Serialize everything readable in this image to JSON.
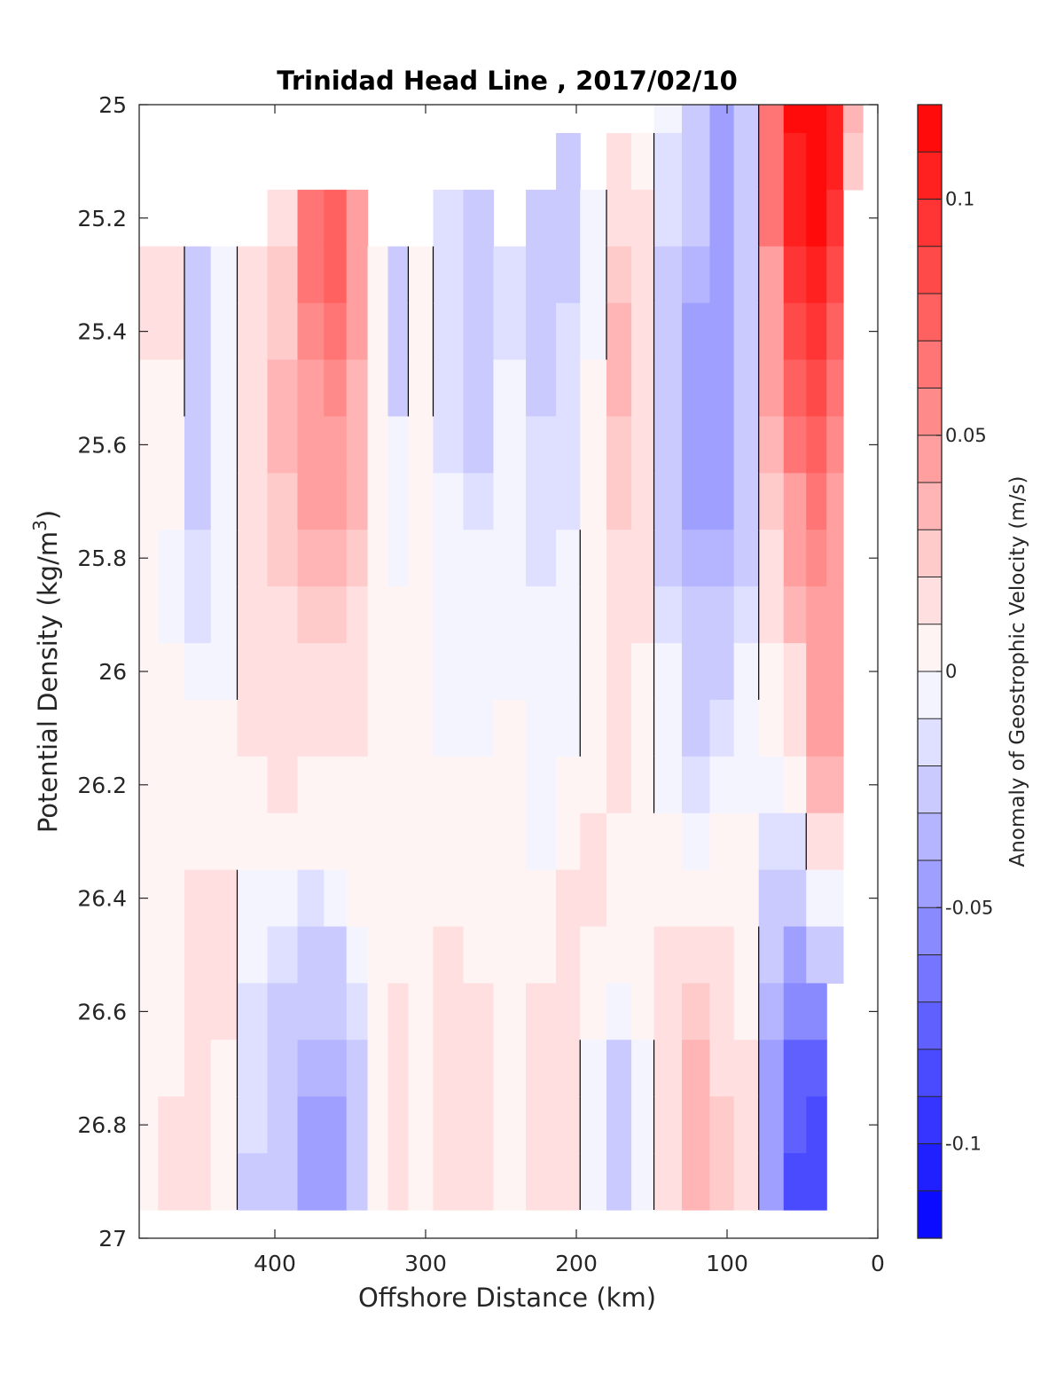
{
  "chart_data": {
    "type": "heatmap",
    "title": "Trinidad Head Line , 2017/02/10",
    "xlabel": "Offshore Distance (km)",
    "ylabel_main": "Potential Density (kg/m",
    "ylabel_sup": "3",
    "ylabel_end": ")",
    "colorbar_label": "Anomaly of Geostrophic Velocity (m/s)",
    "xlim": [
      490,
      0
    ],
    "x_reversed": true,
    "ylim": [
      25,
      27
    ],
    "y_reversed": true,
    "x_ticks": [
      400,
      300,
      200,
      100,
      0
    ],
    "x_tick_labels": [
      "400",
      "300",
      "200",
      "100",
      "0"
    ],
    "y_ticks": [
      25,
      25.2,
      25.4,
      25.6,
      25.8,
      26,
      26.2,
      26.4,
      26.6,
      26.8,
      27
    ],
    "y_tick_labels": [
      "25",
      "25.2",
      "25.4",
      "25.6",
      "25.8",
      "26",
      "26.2",
      "26.4",
      "26.6",
      "26.8",
      "27"
    ],
    "colorbar": {
      "clim": [
        -0.12,
        0.12
      ],
      "ticks": [
        0.1,
        0.05,
        0,
        -0.05,
        -0.1
      ],
      "tick_labels": [
        "0.1",
        "0.05",
        "0",
        "-0.05",
        "-0.1"
      ],
      "levels": 24,
      "colormap": "blue-white-red",
      "color_negative": "#0000ff",
      "color_zero": "#ffffff",
      "color_positive": "#ff0000"
    },
    "zero_contour": true,
    "columns": [
      {
        "x": 485,
        "v": [
          null,
          null,
          null,
          0.02,
          0.01,
          0.005,
          0,
          0,
          0,
          0,
          0,
          0.003,
          0.002,
          0.001,
          0.001,
          0.001,
          0.002,
          0.002,
          0.004,
          0.004,
          null
        ]
      },
      {
        "x": 470,
        "v": [
          null,
          null,
          null,
          0.015,
          0.01,
          0.003,
          0,
          0,
          -0.005,
          -0.01,
          0,
          0.002,
          0.002,
          0.001,
          0.002,
          0.003,
          0.005,
          0.005,
          0.01,
          0.01,
          null
        ]
      },
      {
        "x": 450,
        "v": [
          null,
          null,
          null,
          -0.03,
          -0.03,
          -0.028,
          -0.02,
          -0.02,
          -0.018,
          -0.015,
          -0.01,
          0,
          0,
          0.003,
          0.01,
          0.012,
          0.015,
          0.02,
          0.02,
          0.02,
          null
        ]
      },
      {
        "x": 435,
        "v": [
          null,
          null,
          null,
          -0.01,
          -0.01,
          -0.01,
          -0.01,
          -0.01,
          -0.01,
          -0.01,
          -0.008,
          0,
          0,
          0.002,
          0.01,
          0.012,
          0.01,
          0.005,
          0.005,
          0.005,
          null
        ]
      },
      {
        "x": 415,
        "v": [
          null,
          null,
          null,
          0.015,
          0.012,
          0.015,
          0.015,
          0.015,
          0.015,
          0.015,
          0.015,
          0.01,
          0.005,
          0,
          -0.005,
          -0.01,
          -0.015,
          -0.015,
          -0.018,
          -0.02,
          null
        ]
      },
      {
        "x": 395,
        "v": [
          null,
          null,
          0.02,
          0.025,
          0.025,
          0.03,
          0.03,
          0.025,
          0.025,
          0.02,
          0.02,
          0.015,
          0.01,
          0,
          -0.01,
          -0.015,
          -0.02,
          -0.025,
          -0.03,
          -0.03,
          null
        ]
      },
      {
        "x": 375,
        "v": [
          null,
          null,
          0.06,
          0.06,
          0.055,
          0.05,
          0.045,
          0.04,
          0.035,
          0.025,
          0.02,
          0.012,
          0.005,
          0,
          -0.015,
          -0.02,
          -0.03,
          -0.035,
          -0.04,
          -0.045,
          null
        ]
      },
      {
        "x": 360,
        "v": [
          null,
          null,
          0.07,
          0.07,
          0.06,
          0.055,
          0.05,
          0.04,
          0.035,
          0.025,
          0.02,
          0.01,
          0.003,
          0,
          -0.01,
          -0.02,
          -0.03,
          -0.035,
          -0.04,
          -0.04,
          null
        ]
      },
      {
        "x": 345,
        "v": [
          null,
          null,
          0.05,
          0.045,
          0.04,
          0.035,
          0.035,
          0.03,
          0.025,
          0.02,
          0.015,
          0.01,
          0.005,
          0,
          0,
          -0.005,
          -0.015,
          -0.02,
          -0.025,
          -0.025,
          null
        ]
      },
      {
        "x": 332,
        "v": [
          null,
          null,
          null,
          0,
          0,
          0,
          0,
          0,
          0,
          0,
          0,
          0,
          0,
          0,
          0,
          0,
          0,
          0,
          0,
          0,
          null
        ]
      },
      {
        "x": 318,
        "v": [
          null,
          null,
          null,
          -0.02,
          -0.025,
          -0.02,
          -0.01,
          -0.005,
          -0.003,
          0,
          0,
          0,
          0,
          0,
          0,
          0,
          0.01,
          0.015,
          0.015,
          0.01,
          null
        ]
      },
      {
        "x": 305,
        "v": [
          null,
          null,
          null,
          0.003,
          0.003,
          0.001,
          0,
          0,
          0,
          0,
          0,
          0,
          0,
          0,
          0,
          0,
          0,
          0,
          0,
          0,
          null
        ]
      },
      {
        "x": 285,
        "v": [
          null,
          null,
          -0.015,
          -0.015,
          -0.015,
          -0.015,
          -0.015,
          -0.01,
          -0.01,
          -0.01,
          -0.008,
          -0.005,
          0,
          0,
          0.005,
          0.01,
          0.015,
          0.015,
          0.015,
          0.015,
          null
        ]
      },
      {
        "x": 265,
        "v": [
          null,
          null,
          -0.03,
          -0.03,
          -0.03,
          -0.025,
          -0.02,
          -0.015,
          -0.01,
          -0.008,
          -0.005,
          -0.002,
          0,
          0,
          0.002,
          0.005,
          0.01,
          0.015,
          0.015,
          0.015,
          null
        ]
      },
      {
        "x": 245,
        "v": [
          null,
          null,
          null,
          -0.012,
          -0.012,
          -0.01,
          -0.01,
          -0.008,
          -0.005,
          -0.005,
          -0.003,
          0,
          0,
          0,
          0,
          0,
          0,
          0,
          0,
          0,
          null
        ]
      },
      {
        "x": 222,
        "v": [
          null,
          null,
          -0.02,
          -0.02,
          -0.02,
          -0.02,
          -0.018,
          -0.015,
          -0.012,
          -0.01,
          -0.008,
          -0.006,
          -0.005,
          -0.003,
          0,
          0.003,
          0.01,
          0.015,
          0.02,
          0.02,
          null
        ]
      },
      {
        "x": 205,
        "v": [
          null,
          -0.02,
          -0.03,
          -0.02,
          -0.015,
          -0.015,
          -0.015,
          -0.012,
          -0.01,
          -0.008,
          -0.005,
          -0.003,
          0,
          0,
          0.01,
          0.015,
          0.02,
          0.02,
          0.02,
          0.02,
          null
        ]
      },
      {
        "x": 190,
        "v": [
          null,
          null,
          -0.005,
          -0.002,
          -0.002,
          0,
          0,
          0,
          0.003,
          0.005,
          0.005,
          0.005,
          0.008,
          0.01,
          0.01,
          0.005,
          0,
          -0.005,
          -0.01,
          -0.01,
          null
        ]
      },
      {
        "x": 170,
        "v": [
          null,
          0.01,
          0.02,
          0.025,
          0.03,
          0.03,
          0.025,
          0.025,
          0.02,
          0.02,
          0.015,
          0.01,
          0.01,
          0.008,
          0.005,
          0,
          -0.01,
          -0.02,
          -0.02,
          -0.02,
          null
        ]
      },
      {
        "x": 157,
        "v": [
          null,
          0.005,
          0.01,
          0.01,
          0.015,
          0.015,
          0.015,
          0.012,
          0.01,
          0.01,
          0.008,
          0.005,
          0.002,
          0,
          0,
          0,
          0,
          -0.005,
          -0.01,
          -0.01,
          null
        ]
      },
      {
        "x": 140,
        "v": [
          -0.01,
          -0.012,
          -0.015,
          -0.02,
          -0.02,
          -0.02,
          -0.02,
          -0.02,
          -0.02,
          -0.015,
          -0.01,
          -0.005,
          -0.003,
          0,
          0.002,
          0.01,
          0.015,
          0.02,
          0.02,
          0.02,
          null
        ]
      },
      {
        "x": 120,
        "v": [
          -0.02,
          -0.025,
          -0.03,
          -0.035,
          -0.04,
          -0.04,
          -0.04,
          -0.04,
          -0.035,
          -0.03,
          -0.025,
          -0.02,
          -0.015,
          -0.005,
          0,
          0.015,
          0.025,
          0.03,
          0.035,
          0.035,
          null
        ]
      },
      {
        "x": 103,
        "v": [
          -0.04,
          -0.04,
          -0.04,
          -0.045,
          -0.045,
          -0.045,
          -0.045,
          -0.04,
          -0.035,
          -0.03,
          -0.025,
          -0.015,
          -0.01,
          0,
          0.005,
          0.01,
          0.015,
          0.02,
          0.025,
          0.025,
          null
        ]
      },
      {
        "x": 88,
        "v": [
          -0.02,
          -0.025,
          -0.03,
          -0.03,
          -0.03,
          -0.03,
          -0.03,
          -0.025,
          -0.02,
          -0.015,
          -0.01,
          -0.005,
          -0.003,
          0,
          0,
          0.002,
          0.005,
          0.01,
          0.01,
          0.01,
          null
        ]
      },
      {
        "x": 70,
        "v": [
          0.06,
          0.06,
          0.06,
          0.05,
          0.045,
          0.04,
          0.035,
          0.025,
          0.02,
          0.01,
          0.005,
          0,
          -0.005,
          -0.015,
          -0.02,
          -0.03,
          -0.035,
          -0.04,
          -0.045,
          -0.04,
          null
        ]
      },
      {
        "x": 55,
        "v": [
          0.12,
          0.11,
          0.1,
          0.09,
          0.08,
          0.07,
          0.06,
          0.05,
          0.04,
          0.03,
          0.02,
          0.01,
          0,
          -0.015,
          -0.03,
          -0.045,
          -0.06,
          -0.07,
          -0.075,
          -0.08,
          null
        ]
      },
      {
        "x": 40,
        "v": [
          0.13,
          0.13,
          0.12,
          0.1,
          0.09,
          0.08,
          0.07,
          0.06,
          0.055,
          0.05,
          0.045,
          0.04,
          0.03,
          0.01,
          -0.01,
          -0.03,
          -0.05,
          -0.07,
          -0.08,
          -0.08,
          null
        ]
      },
      {
        "x": 28,
        "v": [
          0.11,
          0.1,
          0.09,
          0.08,
          0.07,
          0.06,
          0.055,
          0.05,
          0.045,
          0.04,
          0.04,
          0.04,
          0.035,
          0.01,
          -0.01,
          -0.02,
          null,
          null,
          null,
          null,
          null
        ]
      },
      {
        "x": 18,
        "v": [
          0.03,
          0.025,
          null,
          null,
          null,
          null,
          null,
          null,
          null,
          null,
          null,
          null,
          null,
          null,
          null,
          null,
          null,
          null,
          null,
          null,
          null
        ]
      }
    ]
  }
}
